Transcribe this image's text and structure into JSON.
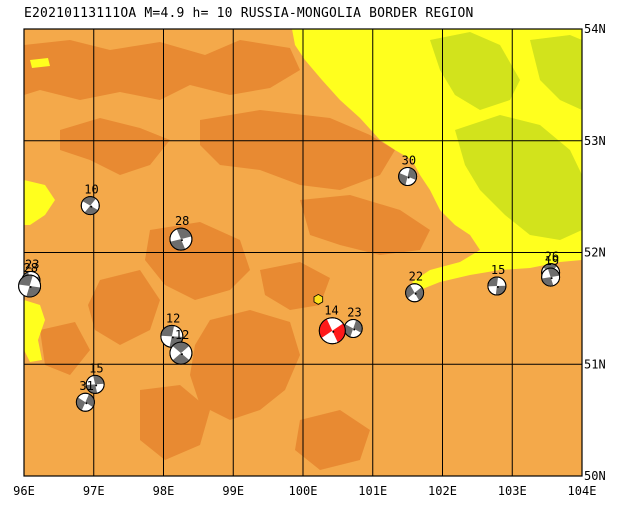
{
  "title": "E20210113111OA M=4.9 h= 10 RUSSIA-MONGOLIA BORDER REGION",
  "colors": {
    "plain": "#f4a94a",
    "hill": "#e88a32",
    "lowland": "#ffff1e",
    "green": "#d2e31c",
    "grid": "#000000",
    "mech_dark": "#6d6d6d",
    "mech_main": "#ff1a1a",
    "marker": "#ffe01a"
  },
  "axes": {
    "lon_labels": [
      "96E",
      "97E",
      "98E",
      "99E",
      "100E",
      "101E",
      "102E",
      "103E",
      "104E"
    ],
    "lat_labels": [
      "54N",
      "53N",
      "52N",
      "51N",
      "50N"
    ],
    "lon_min": 96,
    "lon_max": 104,
    "lat_min": 50,
    "lat_max": 54
  },
  "events": [
    {
      "label": "10",
      "lon": 96.95,
      "lat": 52.42,
      "main": false
    },
    {
      "label": "28",
      "lon": 98.25,
      "lat": 52.12,
      "main": false
    },
    {
      "label": "30",
      "lon": 101.5,
      "lat": 52.68,
      "main": false
    },
    {
      "label": "22",
      "lon": 101.6,
      "lat": 51.64,
      "main": false
    },
    {
      "label": "15",
      "lon": 102.78,
      "lat": 51.7,
      "main": false
    },
    {
      "label": "26",
      "lon": 103.55,
      "lat": 51.82,
      "main": false
    },
    {
      "label": "19",
      "lon": 103.55,
      "lat": 51.78,
      "main": false
    },
    {
      "label": "23",
      "lon": 100.72,
      "lat": 51.32,
      "main": false
    },
    {
      "label": "14",
      "lon": 100.42,
      "lat": 51.3,
      "main": true
    },
    {
      "label": "12",
      "lon": 98.12,
      "lat": 51.25,
      "main": false
    },
    {
      "label": "12",
      "lon": 98.25,
      "lat": 51.1,
      "main": false
    },
    {
      "label": "15",
      "lon": 97.02,
      "lat": 50.82,
      "main": false
    },
    {
      "label": "31",
      "lon": 96.88,
      "lat": 50.66,
      "main": false
    },
    {
      "label": "23",
      "lon": 96.1,
      "lat": 51.75,
      "main": false
    },
    {
      "label": "28",
      "lon": 96.08,
      "lat": 51.7,
      "main": false
    }
  ],
  "station": {
    "lon": 100.22,
    "lat": 51.58
  }
}
